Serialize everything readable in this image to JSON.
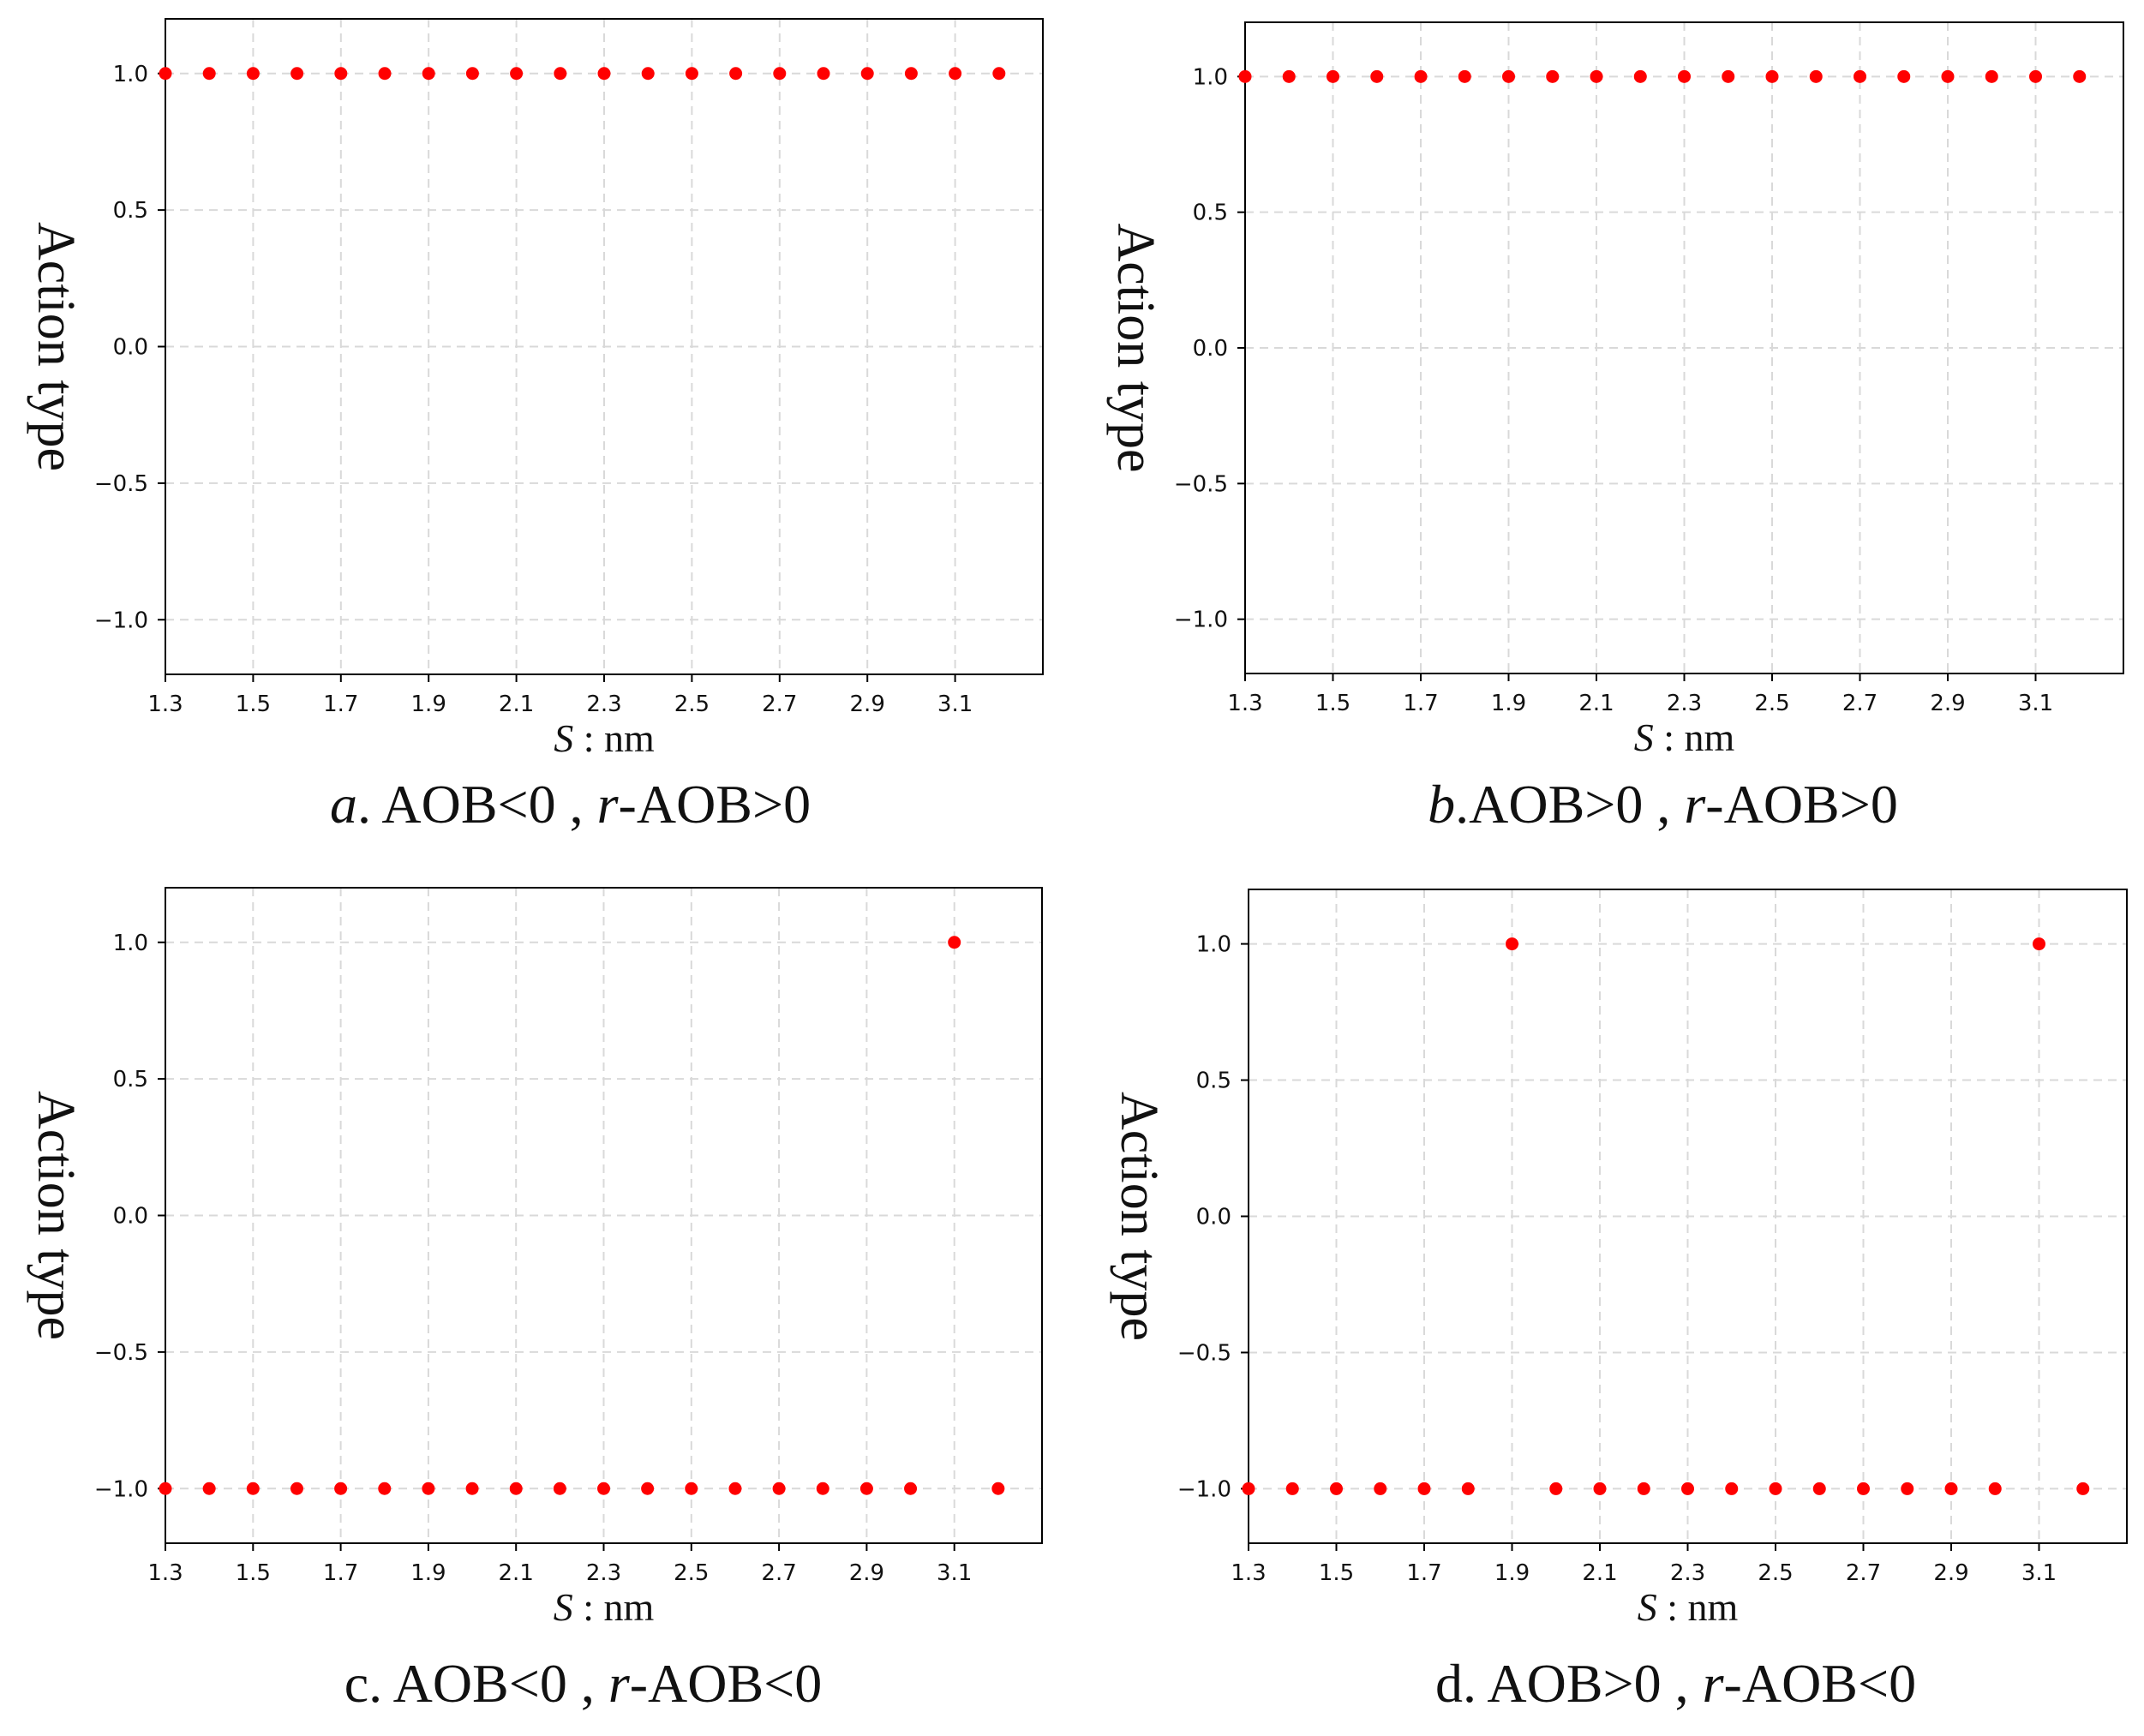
{
  "chart_data": [
    {
      "id": "a",
      "type": "scatter",
      "title": "",
      "xlabel": "S : nm",
      "xlabel_var": "S",
      "xlabel_unit": " : nm",
      "ylabel": "Action type",
      "xlim": [
        1.3,
        3.3
      ],
      "ylim": [
        -1.2,
        1.2
      ],
      "xticks": [
        "1.3",
        "1.5",
        "1.7",
        "1.9",
        "2.1",
        "2.3",
        "2.5",
        "2.7",
        "2.9",
        "3.1"
      ],
      "yticks": [
        "1.0",
        "0.5",
        "0.0",
        "−0.5",
        "−1.0"
      ],
      "ytick_values": [
        1.0,
        0.5,
        0.0,
        -0.5,
        -1.0
      ],
      "grid": true,
      "caption": {
        "letter": "a",
        "rest": ". AOB<0 , ",
        "r": "r",
        "tail": "-AOB>0"
      },
      "series": [
        {
          "name": "action",
          "color": "#ff0000",
          "x": [
            1.3,
            1.4,
            1.5,
            1.6,
            1.7,
            1.8,
            1.9,
            2.0,
            2.1,
            2.2,
            2.3,
            2.4,
            2.5,
            2.6,
            2.7,
            2.8,
            2.9,
            3.0,
            3.1,
            3.2
          ],
          "y": [
            1,
            1,
            1,
            1,
            1,
            1,
            1,
            1,
            1,
            1,
            1,
            1,
            1,
            1,
            1,
            1,
            1,
            1,
            1,
            1
          ]
        }
      ]
    },
    {
      "id": "b",
      "type": "scatter",
      "title": "",
      "xlabel": "S : nm",
      "xlabel_var": "S",
      "xlabel_unit": " : nm",
      "ylabel": "Action type",
      "xlim": [
        1.3,
        3.3
      ],
      "ylim": [
        -1.2,
        1.2
      ],
      "xticks": [
        "1.3",
        "1.5",
        "1.7",
        "1.9",
        "2.1",
        "2.3",
        "2.5",
        "2.7",
        "2.9",
        "3.1"
      ],
      "yticks": [
        "1.0",
        "0.5",
        "0.0",
        "−0.5",
        "−1.0"
      ],
      "ytick_values": [
        1.0,
        0.5,
        0.0,
        -0.5,
        -1.0
      ],
      "grid": true,
      "caption": {
        "letter": "b",
        "rest": ".AOB>0 , ",
        "r": "r",
        "tail": "-AOB>0"
      },
      "series": [
        {
          "name": "action",
          "color": "#ff0000",
          "x": [
            1.3,
            1.4,
            1.5,
            1.6,
            1.7,
            1.8,
            1.9,
            2.0,
            2.1,
            2.2,
            2.3,
            2.4,
            2.5,
            2.6,
            2.7,
            2.8,
            2.9,
            3.0,
            3.1,
            3.2
          ],
          "y": [
            1,
            1,
            1,
            1,
            1,
            1,
            1,
            1,
            1,
            1,
            1,
            1,
            1,
            1,
            1,
            1,
            1,
            1,
            1,
            1
          ]
        }
      ]
    },
    {
      "id": "c",
      "type": "scatter",
      "title": "",
      "xlabel": "S : nm",
      "xlabel_var": "S",
      "xlabel_unit": " : nm",
      "ylabel": "Action type",
      "xlim": [
        1.3,
        3.3
      ],
      "ylim": [
        -1.2,
        1.2
      ],
      "xticks": [
        "1.3",
        "1.5",
        "1.7",
        "1.9",
        "2.1",
        "2.3",
        "2.5",
        "2.7",
        "2.9",
        "3.1"
      ],
      "yticks": [
        "1.0",
        "0.5",
        "0.0",
        "−0.5",
        "−1.0"
      ],
      "ytick_values": [
        1.0,
        0.5,
        0.0,
        -0.5,
        -1.0
      ],
      "grid": true,
      "caption": {
        "letter": "c",
        "rest": ". AOB<0 , ",
        "r": "r",
        "tail": "-AOB<0"
      },
      "series": [
        {
          "name": "action",
          "color": "#ff0000",
          "x": [
            1.3,
            1.4,
            1.5,
            1.6,
            1.7,
            1.8,
            1.9,
            2.0,
            2.1,
            2.2,
            2.3,
            2.4,
            2.5,
            2.6,
            2.7,
            2.8,
            2.9,
            3.0,
            3.1,
            3.2
          ],
          "y": [
            -1,
            -1,
            -1,
            -1,
            -1,
            -1,
            -1,
            -1,
            -1,
            -1,
            -1,
            -1,
            -1,
            -1,
            -1,
            -1,
            -1,
            -1,
            1,
            -1
          ]
        }
      ]
    },
    {
      "id": "d",
      "type": "scatter",
      "title": "",
      "xlabel": "S : nm",
      "xlabel_var": "S",
      "xlabel_unit": " : nm",
      "ylabel": "Action type",
      "xlim": [
        1.3,
        3.3
      ],
      "ylim": [
        -1.2,
        1.2
      ],
      "xticks": [
        "1.3",
        "1.5",
        "1.7",
        "1.9",
        "2.1",
        "2.3",
        "2.5",
        "2.7",
        "2.9",
        "3.1"
      ],
      "yticks": [
        "1.0",
        "0.5",
        "0.0",
        "−0.5",
        "−1.0"
      ],
      "ytick_values": [
        1.0,
        0.5,
        0.0,
        -0.5,
        -1.0
      ],
      "grid": true,
      "caption": {
        "letter": "d",
        "rest": ". AOB>0 , ",
        "r": "r",
        "tail": "-AOB<0"
      },
      "series": [
        {
          "name": "action",
          "color": "#ff0000",
          "x": [
            1.3,
            1.4,
            1.5,
            1.6,
            1.7,
            1.8,
            1.9,
            2.0,
            2.1,
            2.2,
            2.3,
            2.4,
            2.5,
            2.6,
            2.7,
            2.8,
            2.9,
            3.0,
            3.1,
            3.2
          ],
          "y": [
            -1,
            -1,
            -1,
            -1,
            -1,
            -1,
            1,
            -1,
            -1,
            -1,
            -1,
            -1,
            -1,
            -1,
            -1,
            -1,
            -1,
            -1,
            1,
            -1
          ]
        }
      ]
    }
  ]
}
